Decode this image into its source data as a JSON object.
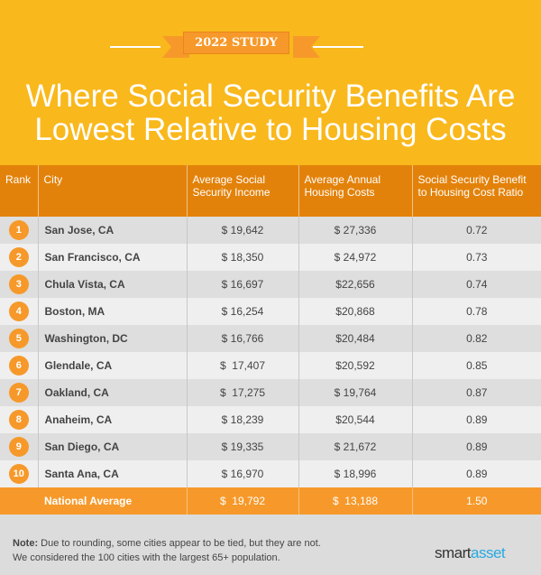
{
  "badge": "2022 STUDY",
  "title_line1": "Where Social Security Benefits Are",
  "title_line2": "Lowest Relative to Housing Costs",
  "columns": [
    "Rank",
    "City",
    "Average Social Security Income",
    "Average Annual Housing Costs",
    "Social Security Benefit to Housing Cost Ratio"
  ],
  "rows": [
    {
      "rank": "1",
      "city": "San Jose, CA",
      "income": "$ 19,642",
      "housing": "$ 27,336",
      "ratio": "0.72"
    },
    {
      "rank": "2",
      "city": "San Francisco, CA",
      "income": "$ 18,350",
      "housing": "$ 24,972",
      "ratio": "0.73"
    },
    {
      "rank": "3",
      "city": "Chula Vista, CA",
      "income": "$ 16,697",
      "housing": "$22,656",
      "ratio": "0.74"
    },
    {
      "rank": "4",
      "city": "Boston, MA",
      "income": "$ 16,254",
      "housing": "$20,868",
      "ratio": "0.78"
    },
    {
      "rank": "5",
      "city": "Washington, DC",
      "income": "$ 16,766",
      "housing": "$20,484",
      "ratio": "0.82"
    },
    {
      "rank": "6",
      "city": "Glendale, CA",
      "income": "$  17,407",
      "housing": "$20,592",
      "ratio": "0.85"
    },
    {
      "rank": "7",
      "city": "Oakland, CA",
      "income": "$  17,275",
      "housing": "$ 19,764",
      "ratio": "0.87"
    },
    {
      "rank": "8",
      "city": "Anaheim, CA",
      "income": "$ 18,239",
      "housing": "$20,544",
      "ratio": "0.89"
    },
    {
      "rank": "9",
      "city": "San Diego, CA",
      "income": "$ 19,335",
      "housing": "$ 21,672",
      "ratio": "0.89"
    },
    {
      "rank": "10",
      "city": "Santa Ana, CA",
      "income": "$ 16,970",
      "housing": "$ 18,996",
      "ratio": "0.89"
    }
  ],
  "national": {
    "label": "National Average",
    "income": "$  19,792",
    "housing": "$  13,188",
    "ratio": "1.50"
  },
  "note_label": "Note:",
  "note_line1": " Due to rounding, some cities appear to be tied, but they are not.",
  "note_line2": "We considered the 100 cities with the largest 65+ population.",
  "logo": {
    "part1": "smart",
    "part2": "asset"
  },
  "colors": {
    "yellow": "#f9b81c",
    "header": "#e3820a",
    "orange": "#f6992a"
  }
}
